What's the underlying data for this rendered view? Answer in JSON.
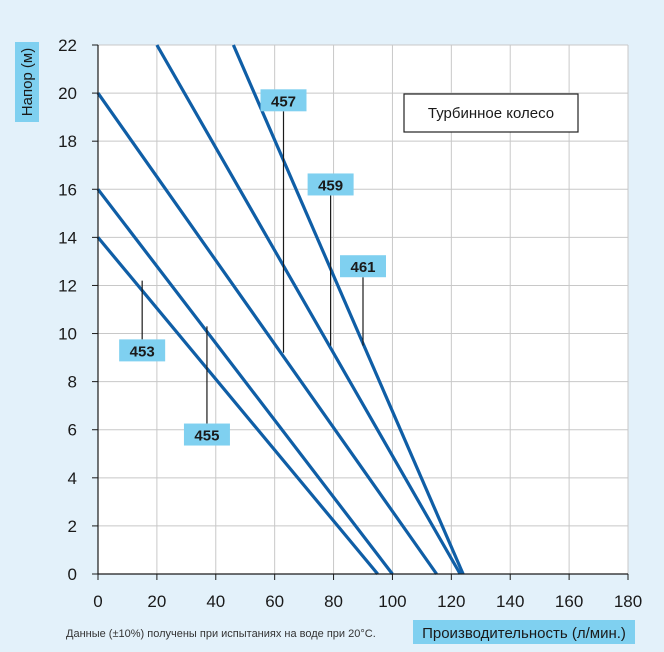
{
  "chart_data": {
    "type": "line",
    "ylabel": "Напор (м)",
    "xlabel": "Производительность (л/мин.)",
    "legend_box": "Турбинное колесо",
    "note": "Данные (±10%) получены при испытаниях на воде при 20°C.",
    "xlim": [
      0,
      180
    ],
    "ylim": [
      0,
      22
    ],
    "x_ticks": [
      0,
      20,
      40,
      60,
      80,
      100,
      120,
      140,
      160,
      180
    ],
    "y_ticks": [
      0,
      2,
      4,
      6,
      8,
      10,
      12,
      14,
      16,
      18,
      20,
      22
    ],
    "grid": true,
    "series": [
      {
        "name": "453",
        "x": [
          0,
          95
        ],
        "y": [
          14,
          0
        ]
      },
      {
        "name": "455",
        "x": [
          0,
          100
        ],
        "y": [
          16,
          0
        ]
      },
      {
        "name": "457",
        "x": [
          0,
          115
        ],
        "y": [
          20,
          0
        ]
      },
      {
        "name": "459",
        "x": [
          20,
          123
        ],
        "y": [
          22,
          0
        ]
      },
      {
        "name": "461",
        "x": [
          46,
          124
        ],
        "y": [
          22,
          0
        ]
      }
    ],
    "callouts": [
      {
        "label": "453",
        "x": 15,
        "y": 12.2,
        "label_x": 15,
        "label_y": 9.3
      },
      {
        "label": "455",
        "x": 37,
        "y": 10.3,
        "label_x": 37,
        "label_y": 5.8
      },
      {
        "label": "457",
        "x": 63,
        "y": 9.2,
        "label_x": 63,
        "label_y": 19.7
      },
      {
        "label": "459",
        "x": 79,
        "y": 9.5,
        "label_x": 79,
        "label_y": 16.2
      },
      {
        "label": "461",
        "x": 90,
        "y": 9.5,
        "label_x": 90,
        "label_y": 12.8
      }
    ],
    "colors": {
      "line": "#0f5ea6",
      "label_bg": "#7fd0f0",
      "bg": "#e3f1fa",
      "plot_bg": "#ffffff",
      "grid": "#c8c8c8"
    }
  }
}
